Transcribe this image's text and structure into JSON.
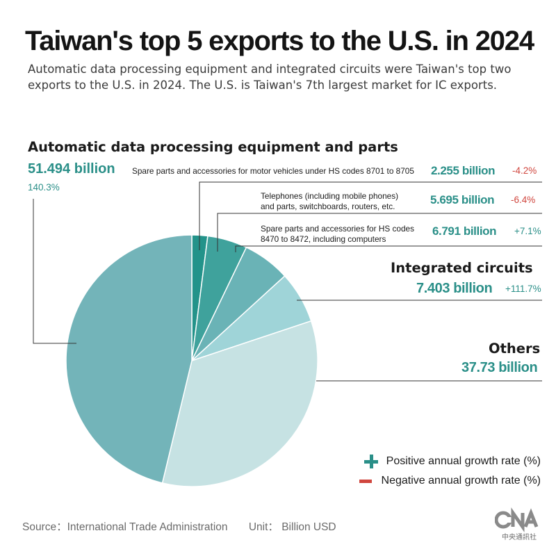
{
  "title": "Taiwan's top 5 exports to the U.S. in 2024",
  "subtitle": "Automatic data processing equipment and integrated circuits were Taiwan's top two exports to the U.S. in 2024. The U.S. is Taiwan's 7th largest market for IC exports.",
  "labels": {
    "main_name": "Automatic data processing equipment and parts",
    "main_value": "51.494 billion",
    "main_rate": "140.3%",
    "motor_name": "Spare parts and accessories for motor vehicles under HS codes 8701 to 8705",
    "motor_value": "2.255 billion",
    "motor_rate": "-4.2%",
    "phone_name_1": "Telephones (including mobile phones)",
    "phone_name_2": "and parts, switchboards, routers, etc.",
    "phone_value": "5.695 billion",
    "phone_rate": "-6.4%",
    "hs_name_1": "Spare parts and accessories for HS codes",
    "hs_name_2": "8470 to 8472, including computers",
    "hs_value": "6.791 billion",
    "hs_rate": "+7.1%",
    "ic_name": "Integrated circuits",
    "ic_value": "7.403 billion",
    "ic_rate": "+111.7%",
    "others_name": "Others",
    "others_value": "37.73 billion"
  },
  "legend": {
    "positive": "Positive annual growth rate (%)",
    "negative": "Negative annual growth rate (%)"
  },
  "footer": {
    "source": "Source：International Trade Administration",
    "unit": "Unit： Billion USD"
  },
  "logo_text": "中央通訊社",
  "colors": {
    "accent": "#2a8f88",
    "negative": "#d0463e"
  },
  "chart_data": {
    "type": "pie",
    "unit": "Billion USD",
    "slices": [
      {
        "label": "Spare parts and accessories for motor vehicles under HS codes 8701 to 8705",
        "value": 2.255,
        "growth": -4.2,
        "color": "#23938a"
      },
      {
        "label": "Telephones (including mobile phones) and parts, switchboards, routers, etc.",
        "value": 5.695,
        "growth": -6.4,
        "color": "#3fa29c"
      },
      {
        "label": "Spare parts and accessories for HS codes 8470 to 8472, including computers",
        "value": 6.791,
        "growth": 7.1,
        "color": "#6ab3b6"
      },
      {
        "label": "Integrated circuits",
        "value": 7.403,
        "growth": 111.7,
        "color": "#9fd4d8"
      },
      {
        "label": "Others",
        "value": 37.73,
        "color": "#c6e2e3"
      },
      {
        "label": "Automatic data processing equipment and parts",
        "value": 51.494,
        "growth": 140.3,
        "color": "#73b4b9"
      }
    ]
  }
}
